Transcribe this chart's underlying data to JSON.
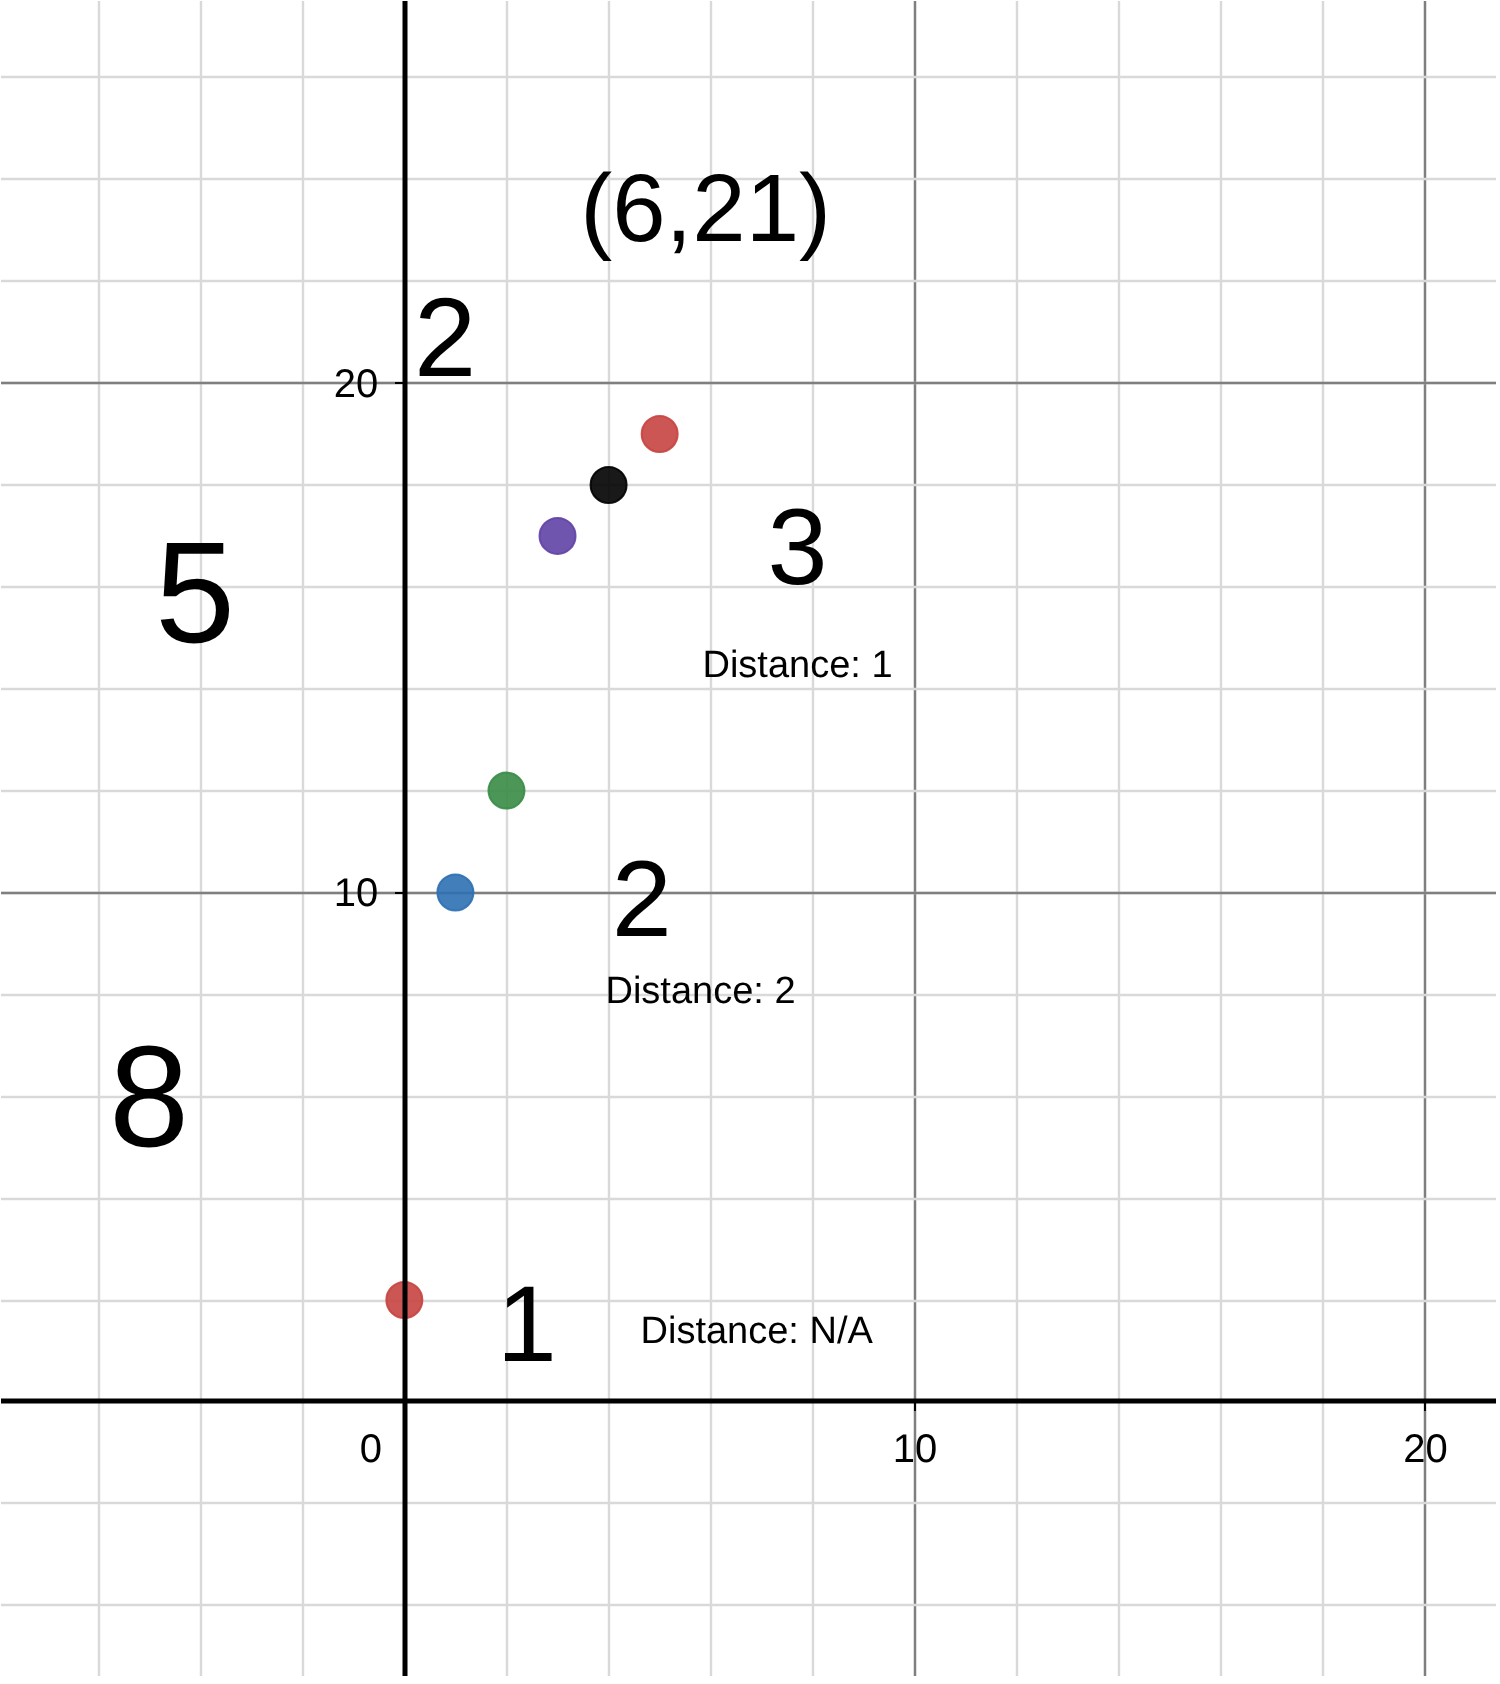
{
  "chart_data": {
    "type": "scatter",
    "x": [
      0,
      1,
      2,
      3,
      4,
      5
    ],
    "values": [
      2,
      10,
      12,
      17,
      18,
      19
    ],
    "colors": [
      "#c74440",
      "#2d70b3",
      "#388c46",
      "#6042a6",
      "#000000",
      "#c74440"
    ],
    "marker": "circle",
    "xlim": [
      -7.9,
      21.4
    ],
    "ylim": [
      -5.4,
      27.5
    ],
    "xticks": [
      0,
      10,
      20
    ],
    "yticks": [
      {
        "value": 0,
        "label": null
      },
      10,
      20
    ],
    "grid": true,
    "annotations": [
      "(6,21)",
      "3",
      "Distance: 1",
      "2",
      "Distance: 2",
      "1",
      "Distance: N/A",
      "8",
      "5",
      "2"
    ]
  }
}
